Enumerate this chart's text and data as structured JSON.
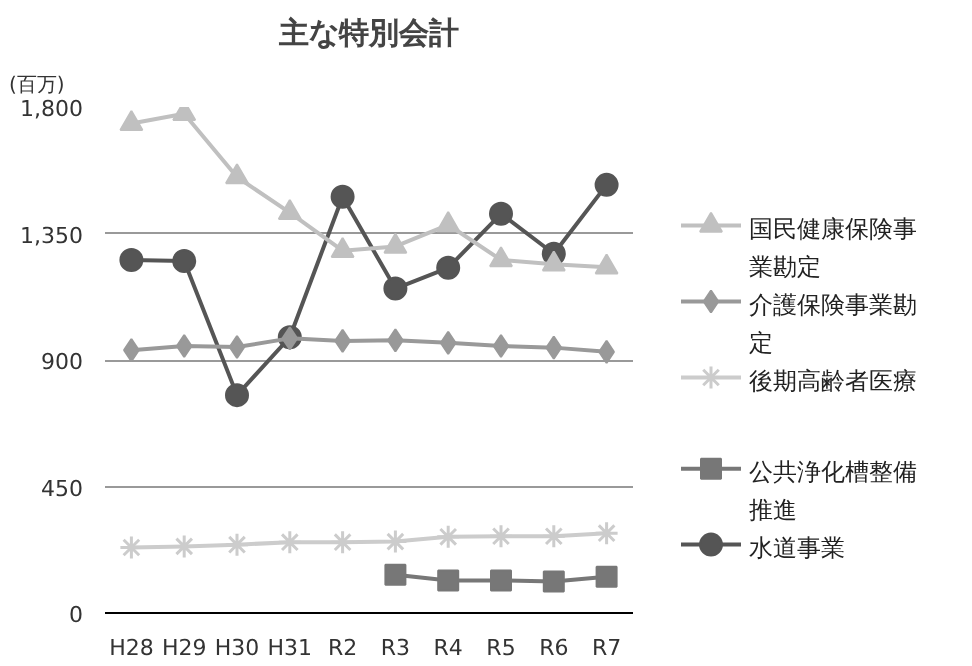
{
  "chart_data": {
    "type": "line",
    "title": "主な特別会計",
    "ylabel": "(百万)",
    "categories": [
      "H28",
      "H29",
      "H30",
      "H31",
      "R2",
      "R3",
      "R4",
      "R5",
      "R6",
      "R7"
    ],
    "ylim": [
      0,
      1800
    ],
    "yticks": [
      0,
      {
        "value": 450,
        "label": "450"
      },
      {
        "value": 900,
        "label": "900"
      },
      {
        "value": 1350,
        "label": "1,350"
      },
      {
        "value": 1800,
        "label": "1,800"
      }
    ],
    "grid": "y",
    "legend": "right",
    "series": [
      {
        "name": "国民健康保険事業勘定",
        "color": "#c0c0c0",
        "marker": "triangle",
        "values": [
          1741,
          1776,
          1551,
          1424,
          1289,
          1304,
          1381,
          1256,
          1241,
          1230
        ]
      },
      {
        "name": "介護保険事業勘定",
        "color": "#999999",
        "marker": "diamond",
        "values": [
          935,
          950,
          946,
          977,
          968,
          970,
          961,
          950,
          944,
          929
        ]
      },
      {
        "name": "後期高齢者医療",
        "color": "#cccccc",
        "marker": "cross",
        "values": [
          233,
          237,
          243,
          252,
          252,
          254,
          271,
          273,
          273,
          284
        ]
      },
      {
        "name": "公共浄化槽整備推進",
        "color": "#777777",
        "marker": "square",
        "values": [
          null,
          null,
          null,
          null,
          null,
          136,
          116,
          116,
          112,
          129
        ]
      },
      {
        "name": "水道事業",
        "color": "#555555",
        "marker": "circle",
        "values": [
          1256,
          1252,
          775,
          981,
          1481,
          1154,
          1228,
          1420,
          1278,
          1523
        ]
      }
    ]
  }
}
